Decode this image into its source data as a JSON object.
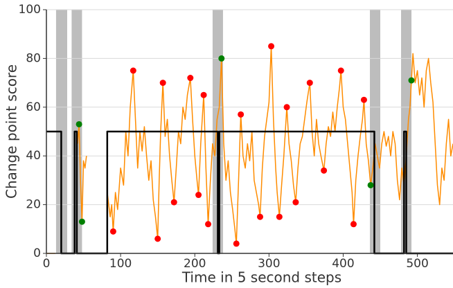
{
  "chart_data": {
    "type": "line",
    "x_label": "Time in 5 second steps",
    "y_label": "Change point score",
    "xlim": [
      0,
      548
    ],
    "ylim": [
      0,
      100
    ],
    "xticks": [
      0,
      100,
      200,
      300,
      400,
      500
    ],
    "yticks": [
      0,
      20,
      40,
      60,
      80,
      100
    ],
    "grid": true,
    "bands": {
      "color": "#bdbdbd",
      "ranges": [
        [
          13,
          28
        ],
        [
          34,
          48
        ],
        [
          224,
          238
        ],
        [
          436,
          450
        ],
        [
          478,
          492
        ]
      ]
    },
    "step_line": {
      "color": "#000000",
      "x": [
        0,
        20,
        20,
        38,
        38,
        41,
        41,
        82,
        82,
        231,
        231,
        233,
        233,
        442,
        442,
        482,
        482,
        485,
        485,
        548
      ],
      "values": [
        50,
        50,
        0,
        0,
        50,
        50,
        0,
        0,
        50,
        50,
        0,
        0,
        50,
        50,
        0,
        0,
        50,
        50,
        0,
        0
      ]
    },
    "score_line": {
      "color": "#ff8c00",
      "x": [
        0,
        12,
        14,
        42,
        44,
        46,
        48,
        50,
        52,
        54,
        56,
        82,
        86,
        88,
        90,
        93,
        96,
        100,
        104,
        107,
        110,
        113,
        117,
        120,
        123,
        126,
        129,
        132,
        135,
        138,
        141,
        144,
        147,
        150,
        152,
        154,
        157,
        160,
        163,
        166,
        169,
        172,
        175,
        178,
        181,
        184,
        187,
        190,
        194,
        197,
        200,
        203,
        205,
        208,
        212,
        215,
        218,
        221,
        224,
        227,
        230,
        233,
        236,
        239,
        242,
        245,
        248,
        251,
        254,
        256,
        259,
        262,
        265,
        268,
        271,
        274,
        277,
        280,
        283,
        286,
        288,
        291,
        294,
        297,
        300,
        303,
        306,
        309,
        311,
        314,
        317,
        320,
        324,
        327,
        330,
        333,
        336,
        339,
        342,
        345,
        348,
        351,
        355,
        358,
        361,
        364,
        367,
        370,
        374,
        377,
        380,
        383,
        386,
        389,
        392,
        395,
        397,
        400,
        403,
        406,
        409,
        412,
        414,
        417,
        420,
        423,
        426,
        428,
        431,
        434,
        437,
        440,
        443,
        446,
        449,
        452,
        455,
        458,
        461,
        464,
        467,
        470,
        473,
        476,
        479,
        482,
        485,
        488,
        490,
        492,
        494,
        497,
        500,
        503,
        506,
        509,
        512,
        515,
        518,
        521,
        524,
        527,
        530,
        533,
        536,
        539,
        542,
        545,
        548
      ],
      "values": [
        0,
        0,
        null,
        45,
        53,
        30,
        13,
        38,
        35,
        40,
        null,
        25,
        15,
        20,
        9,
        25,
        18,
        35,
        28,
        50,
        40,
        60,
        75,
        55,
        35,
        50,
        42,
        52,
        40,
        30,
        38,
        22,
        15,
        6,
        30,
        50,
        70,
        48,
        55,
        40,
        30,
        21,
        35,
        50,
        45,
        60,
        55,
        65,
        72,
        55,
        40,
        30,
        24,
        45,
        65,
        35,
        12,
        30,
        45,
        40,
        55,
        60,
        80,
        45,
        30,
        38,
        25,
        18,
        10,
        4,
        30,
        57,
        40,
        35,
        45,
        38,
        50,
        30,
        25,
        20,
        15,
        35,
        48,
        55,
        62,
        85,
        55,
        35,
        25,
        15,
        28,
        40,
        60,
        45,
        38,
        28,
        21,
        35,
        45,
        48,
        55,
        62,
        70,
        50,
        40,
        55,
        45,
        40,
        34,
        45,
        52,
        48,
        58,
        50,
        60,
        68,
        75,
        60,
        55,
        45,
        35,
        25,
        12,
        30,
        40,
        48,
        55,
        63,
        45,
        38,
        28,
        35,
        45,
        40,
        35,
        45,
        50,
        44,
        48,
        40,
        50,
        45,
        30,
        22,
        35,
        28,
        40,
        55,
        60,
        71,
        82,
        70,
        75,
        65,
        72,
        60,
        75,
        80,
        70,
        62,
        45,
        28,
        20,
        35,
        30,
        45,
        55,
        40,
        45
      ]
    },
    "red_points": {
      "color": "#ff0000",
      "x": [
        90,
        117,
        150,
        157,
        172,
        194,
        205,
        212,
        218,
        256,
        262,
        288,
        303,
        314,
        324,
        336,
        355,
        374,
        397,
        414,
        428
      ],
      "values": [
        9,
        75,
        6,
        70,
        21,
        72,
        24,
        65,
        12,
        4,
        57,
        15,
        85,
        15,
        60,
        21,
        70,
        34,
        75,
        12,
        63
      ]
    },
    "green_points": {
      "color": "#008000",
      "x": [
        44,
        48,
        236,
        437,
        492
      ],
      "values": [
        53,
        13,
        80,
        28,
        71
      ]
    }
  }
}
